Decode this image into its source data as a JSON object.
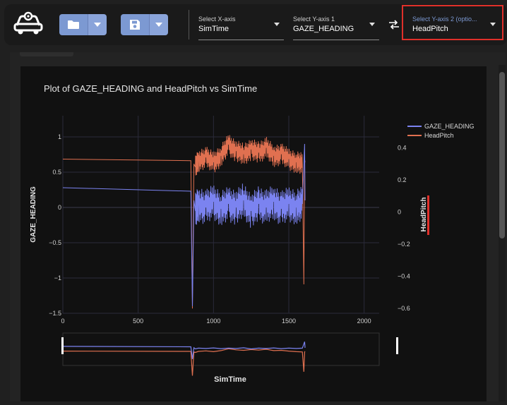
{
  "toolbar": {
    "logo_icon": "car-gear-icon",
    "open_icon": "folder-icon",
    "save_icon": "floppy-disk-icon",
    "dropdown_icon": "caret-down-icon",
    "swap_icon": "swap-arrows-icon",
    "x_axis": {
      "label": "Select X-axis",
      "value": "SimTime"
    },
    "y_axis_1": {
      "label": "Select Y-axis 1",
      "value": "GAZE_HEADING"
    },
    "y_axis_2": {
      "label": "Select Y-axis 2 (optio...",
      "value": "HeadPitch"
    },
    "accent_color": "#7c99d2",
    "highlight_color": "#e0302a"
  },
  "chart_data": {
    "type": "line",
    "title": "Plot of GAZE_HEADING and HeadPitch vs SimTime",
    "xlabel": "SimTime",
    "ylabel": "GAZE_HEADING",
    "y2label": "HeadPitch",
    "xlim": [
      0,
      2100
    ],
    "ylim": [
      -1.5,
      1.3
    ],
    "y2lim": [
      -0.63,
      0.6
    ],
    "x_ticks": [
      "0",
      "500",
      "1000",
      "1500",
      "2000"
    ],
    "y_ticks": [
      "1",
      "0.5",
      "0",
      "−0.5",
      "−1",
      "−1.5"
    ],
    "y2_ticks": [
      "0.4",
      "0.2",
      "0",
      "−0.2",
      "−0.4",
      "−0.6"
    ],
    "legend": [
      "GAZE_HEADING",
      "HeadPitch"
    ],
    "legend_position": "top-right",
    "range_slider": true,
    "series": [
      {
        "name": "GAZE_HEADING",
        "axis": "y",
        "color": "#7b83f0",
        "x": [
          0,
          850,
          860,
          870,
          880,
          900,
          950,
          1000,
          1050,
          1100,
          1150,
          1200,
          1250,
          1300,
          1350,
          1400,
          1450,
          1500,
          1550,
          1590,
          1605,
          1608
        ],
        "y": [
          0.28,
          0.23,
          -1.4,
          0.1,
          -0.05,
          0.05,
          0.0,
          0.08,
          -0.02,
          0.05,
          0.0,
          0.1,
          -0.05,
          0.05,
          0.0,
          0.08,
          -0.02,
          0.05,
          0.0,
          0.05,
          0.9,
          0.1
        ]
      },
      {
        "name": "HeadPitch",
        "axis": "y2",
        "color": "#e07050",
        "x": [
          0,
          850,
          860,
          870,
          880,
          900,
          950,
          1000,
          1050,
          1100,
          1150,
          1200,
          1250,
          1300,
          1350,
          1400,
          1450,
          1500,
          1550,
          1590,
          1600,
          1605,
          1608
        ],
        "y": [
          0.33,
          0.32,
          -0.6,
          0.3,
          0.28,
          0.32,
          0.34,
          0.31,
          0.35,
          0.42,
          0.38,
          0.36,
          0.39,
          0.37,
          0.4,
          0.35,
          0.36,
          0.33,
          0.31,
          0.3,
          -0.45,
          0.3,
          0.32
        ]
      }
    ]
  }
}
